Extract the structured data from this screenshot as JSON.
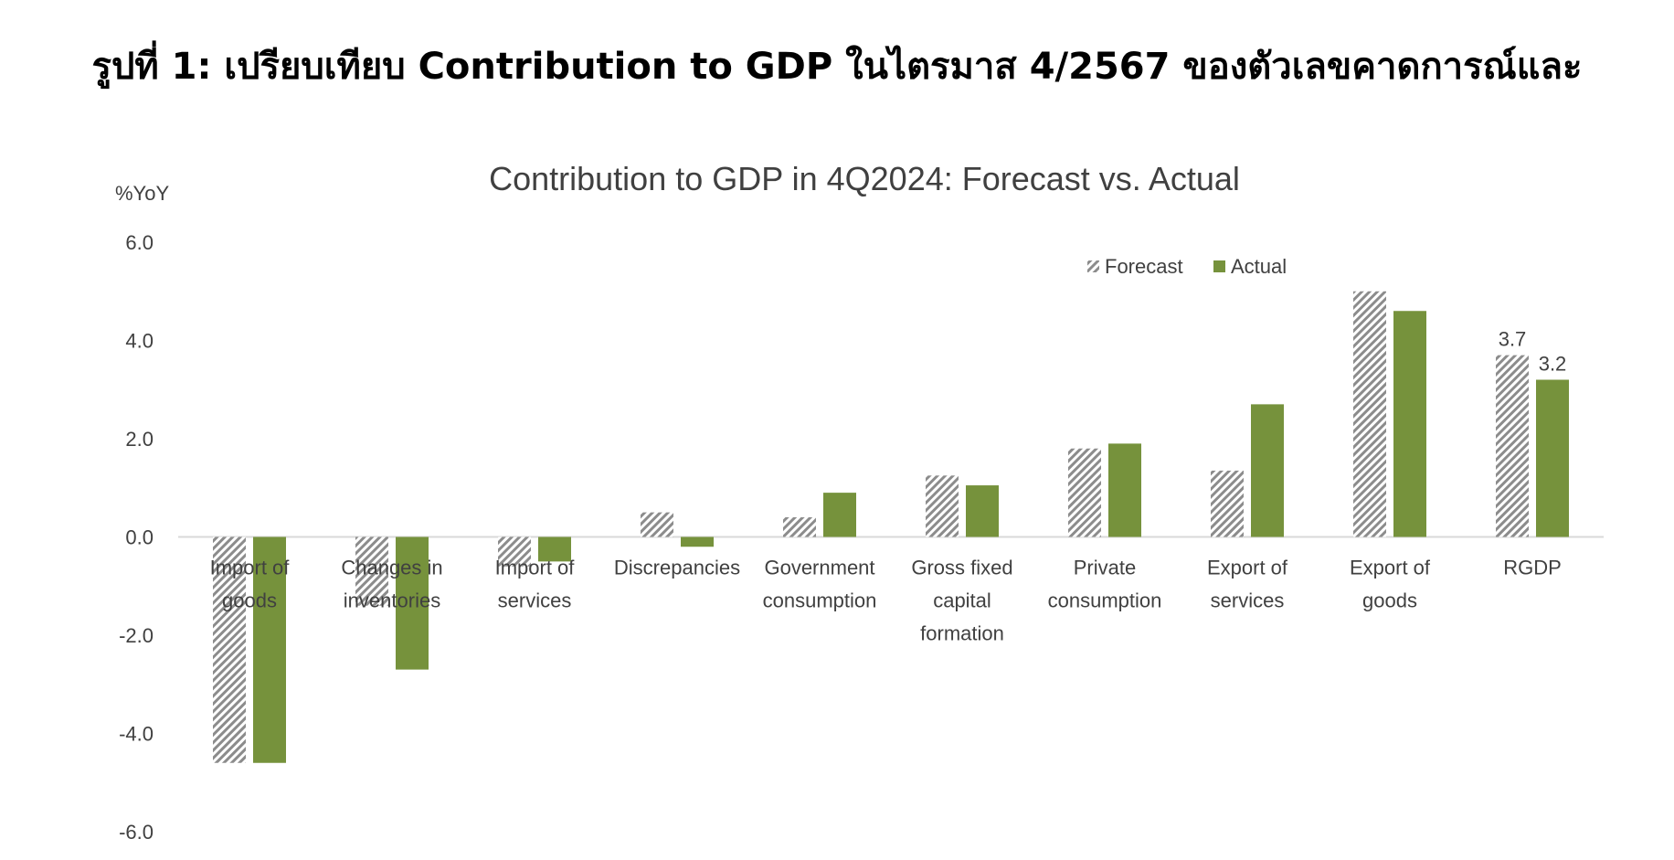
{
  "page": {
    "heading": "รูปที่ 1: เปรียบเทียบ Contribution to GDP ในไตรมาส 4/2567 ของตัวเลขคาดการณ์และ"
  },
  "chart_data": {
    "type": "bar",
    "title": "Contribution to GDP in 4Q2024: Forecast vs. Actual",
    "ylabel": "%YoY",
    "xlabel": "",
    "ylim": [
      -6.0,
      6.0
    ],
    "yticks": [
      "6.0",
      "4.0",
      "2.0",
      "0.0",
      "-2.0",
      "-4.0",
      "-6.0"
    ],
    "grid": false,
    "legend_position": "top-right",
    "categories": [
      [
        "Import of",
        "goods"
      ],
      [
        "Changes in",
        "inventories"
      ],
      [
        "Import of",
        "services"
      ],
      [
        "Discrepancies"
      ],
      [
        "Government",
        "consumption"
      ],
      [
        "Gross fixed",
        "capital",
        "formation"
      ],
      [
        "Private",
        "consumption"
      ],
      [
        "Export of",
        "services"
      ],
      [
        "Export of",
        "goods"
      ],
      [
        "RGDP"
      ]
    ],
    "series": [
      {
        "name": "Forecast",
        "color": "#8c8c8c",
        "pattern": "diagonal-hatch",
        "values": [
          -4.6,
          -1.4,
          -0.6,
          0.5,
          0.4,
          1.25,
          1.8,
          1.35,
          5.0,
          3.7
        ]
      },
      {
        "name": "Actual",
        "color": "#76923c",
        "pattern": "solid",
        "values": [
          -4.6,
          -2.7,
          -0.5,
          -0.2,
          0.9,
          1.05,
          1.9,
          2.7,
          4.6,
          3.2
        ]
      }
    ],
    "data_labels": [
      {
        "category_index": 9,
        "series_index": 0,
        "text": "3.7"
      },
      {
        "category_index": 9,
        "series_index": 1,
        "text": "3.2"
      }
    ]
  }
}
